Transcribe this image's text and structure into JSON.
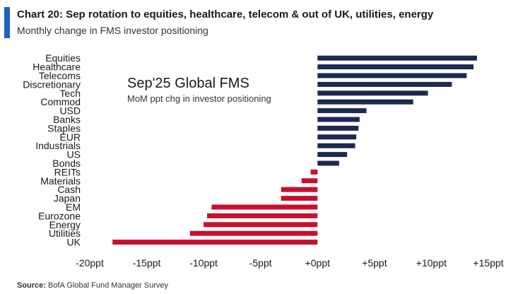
{
  "header": {
    "title": "Chart 20: Sep rotation to equities, healthcare, telecom & out of UK, utilities, energy",
    "subtitle": "Monthly change in FMS investor positioning",
    "accent_color": "#1f5fbf"
  },
  "chart_data": {
    "type": "bar",
    "orientation": "horizontal",
    "inset_title": "Sep'25 Global FMS",
    "inset_subtitle": "MoM ppt chg in investor positioning",
    "categories": [
      "Equities",
      "Healthcare",
      "Telecoms",
      "Discretionary",
      "Tech",
      "Commod",
      "USD",
      "Banks",
      "Staples",
      "EUR",
      "Industrials",
      "US",
      "Bonds",
      "REITs",
      "Materials",
      "Cash",
      "Japan",
      "EM",
      "Eurozone",
      "Energy",
      "Utilities",
      "UK"
    ],
    "values": [
      14,
      13.7,
      13.1,
      11.8,
      9.7,
      8.4,
      4.3,
      3.7,
      3.6,
      3.4,
      3.3,
      2.6,
      1.9,
      -0.6,
      -1.4,
      -3.2,
      -3.2,
      -9.3,
      -9.7,
      -10,
      -11.2,
      -18
    ],
    "xlim": [
      -20,
      15
    ],
    "xticks": [
      -20,
      -15,
      -10,
      -5,
      0,
      5,
      10,
      15
    ],
    "xtick_labels": [
      "-20ppt",
      "-15ppt",
      "-10ppt",
      "-5ppt",
      "+0ppt",
      "+5ppt",
      "+10ppt",
      "+15ppt"
    ],
    "positive_color": "#1b2a4e",
    "negative_color": "#c8102e",
    "grid": false
  },
  "footer": {
    "source_label": "Source:",
    "source_text": "BofA Global Fund Manager Survey"
  }
}
